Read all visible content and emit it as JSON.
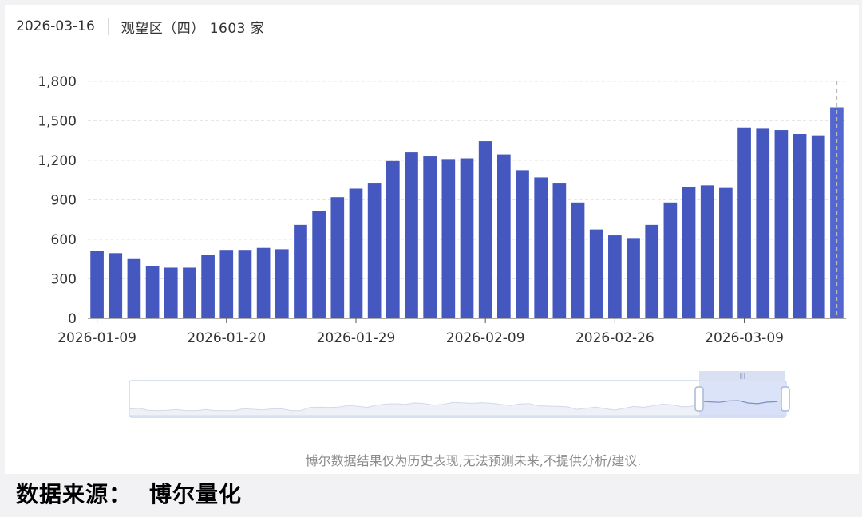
{
  "tooltip": {
    "date": "2026-03-16",
    "series_label": "观望区（四）",
    "value": "1603",
    "unit": "家"
  },
  "disclaimer": "博尔数据结果仅为历史表现,无法预测未来,不提供分析/建议.",
  "source": {
    "label": "数据来源：",
    "name": "博尔量化"
  },
  "colors": {
    "bar": "#4558bf",
    "highlight_bar": "#5466cf",
    "grid": "#e6e6e6",
    "axis_text": "#333333",
    "slider_fill": "#cfd9f5",
    "slider_border": "#a9b7d9"
  },
  "chart_data": {
    "type": "bar",
    "ylim": [
      0,
      1800
    ],
    "yticks": [
      0,
      300,
      600,
      900,
      1200,
      1500,
      1800
    ],
    "ytick_labels": [
      "0",
      "300",
      "600",
      "900",
      "1,200",
      "1,500",
      "1,800"
    ],
    "xtick_labels": [
      "2026-01-09",
      "2026-01-20",
      "2026-01-29",
      "2026-02-09",
      "2026-02-26",
      "2026-03-09"
    ],
    "xtick_indices": [
      0,
      7,
      14,
      21,
      28,
      35
    ],
    "grid": true,
    "highlight_index": 40,
    "values": [
      510,
      495,
      450,
      400,
      385,
      385,
      480,
      520,
      520,
      535,
      525,
      710,
      815,
      920,
      985,
      1030,
      1195,
      1260,
      1230,
      1210,
      1215,
      1345,
      1245,
      1125,
      1070,
      1030,
      880,
      675,
      630,
      610,
      710,
      880,
      995,
      1010,
      990,
      1450,
      1440,
      1430,
      1400,
      1390,
      1603
    ]
  }
}
